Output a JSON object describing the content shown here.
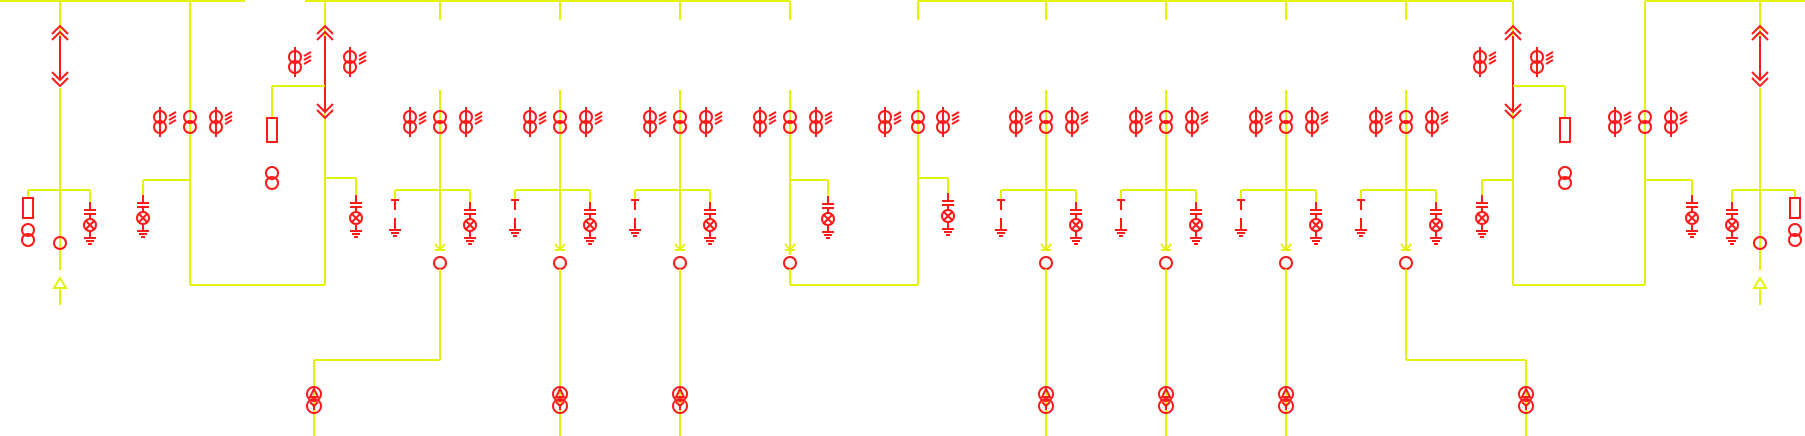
{
  "diagram": {
    "type": "single-line-electrical",
    "colors": {
      "wire": "#e3f20c",
      "equipment": "#ff1a1a",
      "background": "#ffffff"
    },
    "symbols": [
      "busbar",
      "double-current-transformer-icon",
      "current-transformer-icon",
      "voltage-transformer-icon",
      "capacitor-icon",
      "indicator-lamp-icon",
      "ground-icon",
      "grounding-switch-icon",
      "fuse-icon",
      "breaker-circle-icon",
      "disconnect-arrow-icon",
      "delta-wye-transformer-icon",
      "withdrawable-contact-icon"
    ]
  }
}
